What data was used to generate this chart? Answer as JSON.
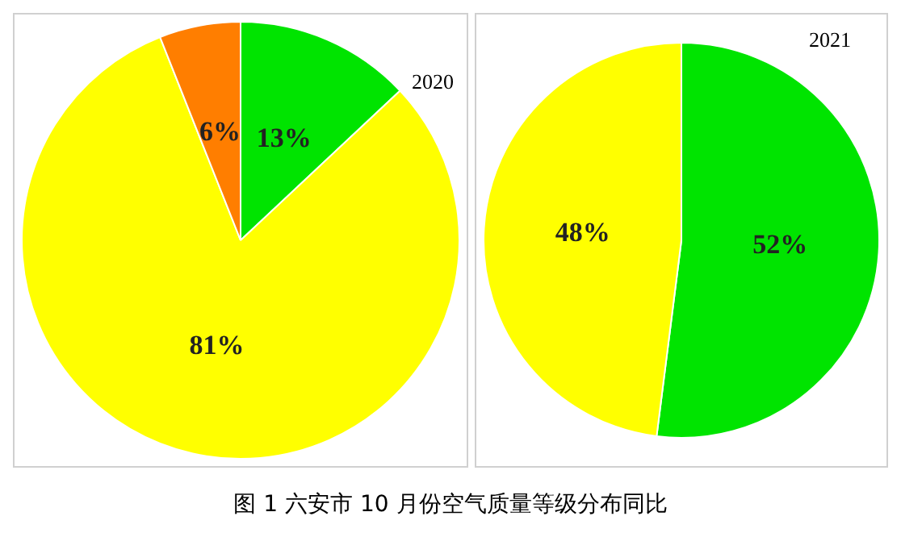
{
  "chart_data": [
    {
      "type": "pie",
      "title": "2020",
      "categories": [
        null,
        null,
        null
      ],
      "values": [
        13,
        81,
        6
      ],
      "colors": [
        "#00e400",
        "#ffff00",
        "#ff7e00"
      ],
      "value_labels": [
        "13%",
        "81%",
        "6%"
      ],
      "legend": false,
      "annotations": [
        "图 1 六安市 10 月份空气质量等级分布同比"
      ]
    },
    {
      "type": "pie",
      "title": "2021",
      "categories": [
        null,
        null
      ],
      "values": [
        52,
        48
      ],
      "colors": [
        "#00e400",
        "#ffff00"
      ],
      "value_labels": [
        "52%",
        "48%"
      ],
      "legend": false
    }
  ]
}
